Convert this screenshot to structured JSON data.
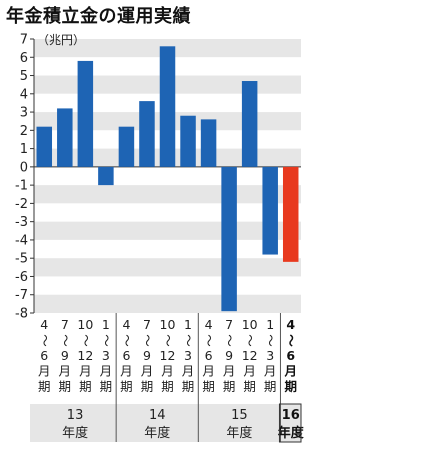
{
  "chart_data": {
    "type": "bar",
    "title": "年金積立金の運用実績",
    "ylabel": "（兆円）",
    "ylim": [
      -8,
      7
    ],
    "yticks": [
      "7",
      "6",
      "5",
      "4",
      "3",
      "2",
      "1",
      "0",
      "-1",
      "-2",
      "-3",
      "-4",
      "-5",
      "-6",
      "-7",
      "-8"
    ],
    "categories": [
      [
        "4",
        "〜",
        "6",
        "月",
        "期"
      ],
      [
        "7",
        "〜",
        "9",
        "月",
        "期"
      ],
      [
        "10",
        "〜",
        "12",
        "月",
        "期"
      ],
      [
        "1",
        "〜",
        "3",
        "月",
        "期"
      ],
      [
        "4",
        "〜",
        "6",
        "月",
        "期"
      ],
      [
        "7",
        "〜",
        "9",
        "月",
        "期"
      ],
      [
        "10",
        "〜",
        "12",
        "月",
        "期"
      ],
      [
        "1",
        "〜",
        "3",
        "月",
        "期"
      ],
      [
        "4",
        "〜",
        "6",
        "月",
        "期"
      ],
      [
        "7",
        "〜",
        "9",
        "月",
        "期"
      ],
      [
        "10",
        "〜",
        "12",
        "月",
        "期"
      ],
      [
        "1",
        "〜",
        "3",
        "月",
        "期"
      ],
      [
        "4",
        "〜",
        "6",
        "月",
        "期"
      ]
    ],
    "values": [
      2.2,
      3.2,
      5.8,
      -1.0,
      2.2,
      3.6,
      6.6,
      2.8,
      2.6,
      -7.9,
      4.7,
      -4.8,
      -5.2
    ],
    "colors": [
      "#1e64b4",
      "#1e64b4",
      "#1e64b4",
      "#1e64b4",
      "#1e64b4",
      "#1e64b4",
      "#1e64b4",
      "#1e64b4",
      "#1e64b4",
      "#1e64b4",
      "#1e64b4",
      "#1e64b4",
      "#e8391e"
    ],
    "highlight_index": 12,
    "fiscal_years": [
      {
        "year": "13",
        "unit": "年度",
        "span": [
          0,
          3
        ]
      },
      {
        "year": "14",
        "unit": "年度",
        "span": [
          4,
          7
        ]
      },
      {
        "year": "15",
        "unit": "年度",
        "span": [
          8,
          11
        ]
      },
      {
        "year": "16",
        "unit": "年度",
        "span": [
          12,
          12
        ]
      }
    ],
    "band_colors": [
      "#e6e6e6",
      "#ffffff"
    ],
    "grid": true
  }
}
